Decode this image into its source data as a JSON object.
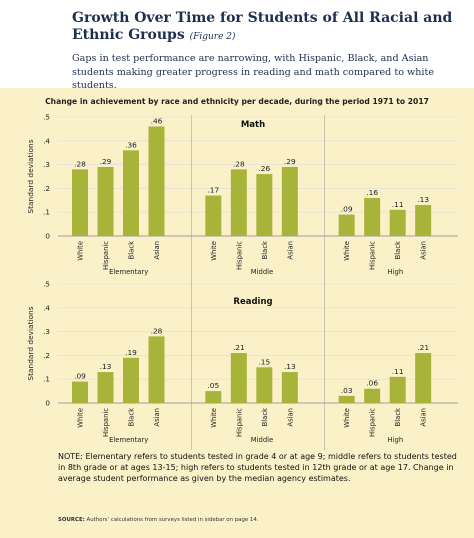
{
  "header": {
    "title": "Growth Over Time for Students of All Racial and Ethnic Groups",
    "figure_label": "(Figure 2)",
    "subtitle": "Gaps in test performance are narrowing, with Hispanic, Black, and Asian students making greater progress in reading and math compared to white students."
  },
  "chart_heading": "Change in achievement by race and ethnicity per decade, during the period 1971 to 2017",
  "colors": {
    "bar": "#a8b33a",
    "panel": "#fbf1c9",
    "grid": "#dcdcdc",
    "divider": "#999999"
  },
  "chart_data": [
    {
      "type": "bar",
      "title": "Math",
      "ylabel": "Standard deviations",
      "ylim": [
        0,
        0.5
      ],
      "yticks": [
        "0",
        ".1",
        ".2",
        ".3",
        ".4",
        ".5"
      ],
      "categories": [
        "White",
        "Hispanic",
        "Black",
        "Asian"
      ],
      "groups": [
        {
          "name": "Elementary",
          "values": [
            0.28,
            0.29,
            0.36,
            0.46
          ],
          "labels": [
            ".28",
            ".29",
            ".36",
            ".46"
          ]
        },
        {
          "name": "Middle",
          "values": [
            0.17,
            0.28,
            0.26,
            0.29
          ],
          "labels": [
            ".17",
            ".28",
            ".26",
            ".29"
          ]
        },
        {
          "name": "High",
          "values": [
            0.09,
            0.16,
            0.11,
            0.13
          ],
          "labels": [
            ".09",
            ".16",
            ".11",
            ".13"
          ]
        }
      ],
      "grid": true
    },
    {
      "type": "bar",
      "title": "Reading",
      "ylabel": "Standard deviations",
      "ylim": [
        0,
        0.5
      ],
      "yticks": [
        "0",
        ".1",
        ".2",
        ".3",
        ".4",
        ".5"
      ],
      "categories": [
        "White",
        "Hispanic",
        "Black",
        "Asian"
      ],
      "groups": [
        {
          "name": "Elementary",
          "values": [
            0.09,
            0.13,
            0.19,
            0.28
          ],
          "labels": [
            ".09",
            ".13",
            ".19",
            ".28"
          ]
        },
        {
          "name": "Middle",
          "values": [
            0.05,
            0.21,
            0.15,
            0.13
          ],
          "labels": [
            ".05",
            ".21",
            ".15",
            ".13"
          ]
        },
        {
          "name": "High",
          "values": [
            0.03,
            0.06,
            0.11,
            0.21
          ],
          "labels": [
            ".03",
            ".06",
            ".11",
            ".21"
          ]
        }
      ],
      "grid": true
    }
  ],
  "note": "NOTE: Elementary refers to students tested in grade 4 or at age 9; middle refers to students tested in 8th grade or at ages 13-15; high refers to students tested in 12th grade or at age 17. Change in average student performance as given by the median agency estimates.",
  "source": {
    "label": "SOURCE:",
    "text": "Authors’ calculations from surveys listed in sidebar on page 14."
  }
}
